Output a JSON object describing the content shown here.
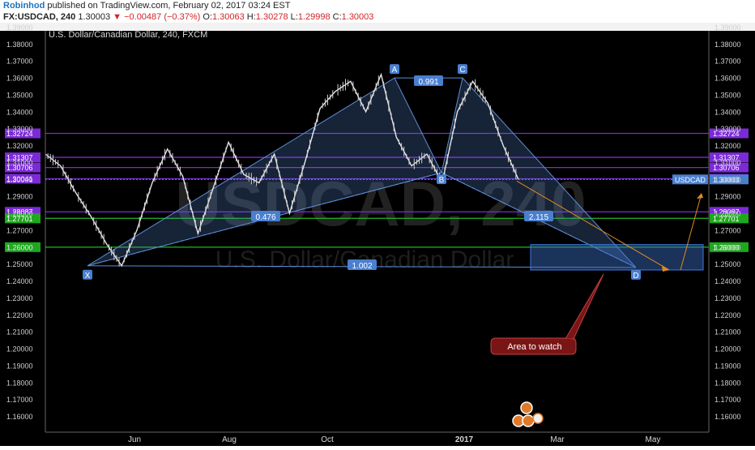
{
  "header": {
    "author": "Robinhod",
    "published": "published on TradingView.com, February 02, 2017 03:24 EST",
    "symbol": "FX:USDCAD, 240",
    "last": "1.30003",
    "change": "−0.00487 (−0.37%)",
    "open_label": "O:",
    "open": "1.30063",
    "high_label": "H:",
    "high": "1.30278",
    "low_label": "L:",
    "low": "1.29998",
    "close_label": "C:",
    "close": "1.30003"
  },
  "chart_title": "U.S. Dollar/Canadian Dollar, 240, FXCM",
  "watermark": {
    "big": "USDCAD, 240",
    "small": "U.S. Dollar/Canadian Dollar"
  },
  "colors": {
    "bg": "#000000",
    "pattern": "#5b8ed6",
    "purple": "#7b2bd6",
    "green": "#1ea81e",
    "arrow": "#e08a1e",
    "callout": "#7a1515"
  },
  "chart_data": {
    "type": "line",
    "title": "U.S. Dollar/Canadian Dollar, 240, FXCM",
    "ylim": [
      1.15,
      1.395
    ],
    "x_ticks": [
      "Jun",
      "Aug",
      "Oct",
      "2017",
      "Mar",
      "May"
    ],
    "y_ticks": [
      "1.39000",
      "1.38000",
      "1.37000",
      "1.36000",
      "1.35000",
      "1.34000",
      "1.33000",
      "1.32000",
      "1.31000",
      "1.30000",
      "1.29000",
      "1.28000",
      "1.27000",
      "1.26000",
      "1.25000",
      "1.24000",
      "1.23000",
      "1.22000",
      "1.21000",
      "1.20000",
      "1.19000",
      "1.18000",
      "1.17000",
      "1.16000"
    ],
    "price_series": [
      1.315,
      1.308,
      1.292,
      1.278,
      1.262,
      1.249,
      1.27,
      1.298,
      1.318,
      1.302,
      1.268,
      1.295,
      1.322,
      1.303,
      1.298,
      1.315,
      1.28,
      1.31,
      1.342,
      1.352,
      1.358,
      1.34,
      1.362,
      1.325,
      1.308,
      1.315,
      1.298,
      1.34,
      1.358,
      1.345,
      1.32,
      1.3
    ],
    "levels": [
      {
        "label": "1.32724",
        "value": 1.32724,
        "color": "purple"
      },
      {
        "label": "1.31307",
        "value": 1.31307,
        "color": "purple"
      },
      {
        "label": "1.30706",
        "value": 1.30706,
        "color": "purple"
      },
      {
        "label": "1.30041",
        "value": 1.30041,
        "color": "purple"
      },
      {
        "label": "1.28087",
        "value": 1.28087,
        "color": "purple"
      },
      {
        "label": "1.27701",
        "value": 1.27701,
        "color": "green"
      },
      {
        "label": "1.26000",
        "value": 1.26,
        "color": "green"
      }
    ],
    "current_price": {
      "label": "1.30003",
      "value": 1.30003,
      "symbol": "USDCAD"
    },
    "pattern": {
      "points": [
        {
          "label": "X",
          "value": 1.249
        },
        {
          "label": "A",
          "value": 1.36
        },
        {
          "label": "B",
          "value": 1.304
        },
        {
          "label": "C",
          "value": 1.36
        },
        {
          "label": "D",
          "value": 1.248
        }
      ],
      "ratios": [
        "0.991",
        "0.476",
        "2.115",
        "1.002"
      ]
    },
    "target_zone": {
      "low": 1.2465,
      "high": 1.2615
    },
    "annotation": "Area to watch"
  }
}
